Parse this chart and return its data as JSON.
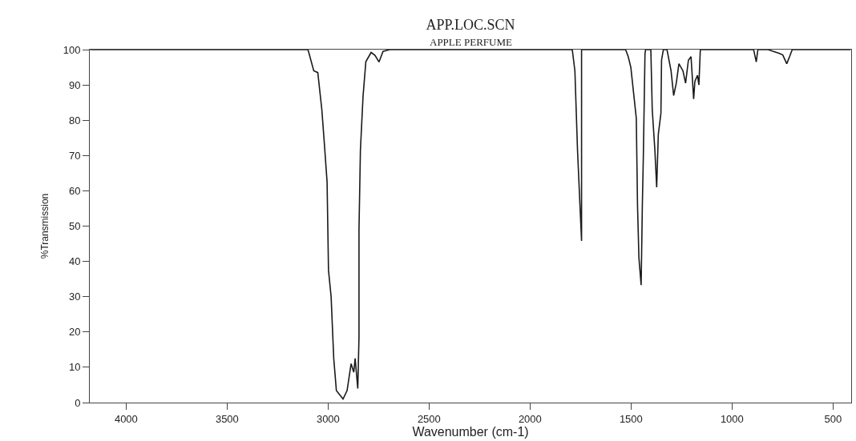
{
  "chart_data": {
    "type": "line",
    "title": "APP.LOC.SCN",
    "subtitle": "APPLE PERFUME",
    "xlabel": "Wavenumber (cm-1)",
    "ylabel": "%Transmission",
    "x": [
      4178,
      3100,
      3097,
      3071,
      3051,
      3031,
      3018,
      3005,
      2998,
      2985,
      2972,
      2959,
      2926,
      2906,
      2886,
      2873,
      2866,
      2853,
      2847,
      2847,
      2840,
      2827,
      2813,
      2787,
      2768,
      2748,
      2728,
      2695,
      1795,
      1791,
      1778,
      1765,
      1745,
      1745,
      1745,
      1527,
      1514,
      1501,
      1474,
      1468,
      1461,
      1450,
      1444,
      1439,
      1431,
      1428,
      1402,
      1395,
      1382,
      1373,
      1365,
      1352,
      1349,
      1340,
      1322,
      1302,
      1289,
      1276,
      1263,
      1243,
      1230,
      1216,
      1203,
      1190,
      1184,
      1171,
      1164,
      1157,
      893,
      880,
      872,
      821,
      795,
      768,
      749,
      729,
      715,
      702,
      413
    ],
    "series": [
      {
        "color": "#1a1a1a",
        "values": [
          100,
          100,
          99.5,
          94,
          93.5,
          83,
          73,
          62.5,
          37.5,
          30,
          12.5,
          3.4,
          1,
          3.4,
          11,
          8.6,
          12.5,
          4,
          18.5,
          49,
          71.5,
          86.7,
          96.6,
          99.2,
          98.4,
          96.5,
          99.5,
          100,
          100,
          100,
          94,
          71.5,
          45.8,
          86.7,
          100,
          100,
          98,
          95,
          80.6,
          56,
          41,
          33.3,
          56,
          70,
          98.8,
          100,
          100,
          83,
          71.5,
          61,
          76,
          82,
          97,
          100,
          100,
          94,
          87,
          90.5,
          96,
          94,
          90.5,
          97,
          98,
          86,
          91,
          92.7,
          90,
          100,
          100,
          96.5,
          100,
          100,
          99.5,
          99,
          98.5,
          96,
          98,
          100,
          100
        ]
      }
    ],
    "xlim": [
      4180,
      410
    ],
    "ylim": [
      0,
      100
    ],
    "xticks": [
      4000,
      3500,
      3000,
      2500,
      2000,
      1500,
      1000,
      500
    ],
    "yticks": [
      0,
      10,
      20,
      30,
      40,
      50,
      60,
      70,
      80,
      90,
      100
    ],
    "marker": "none",
    "line_style": "solid"
  }
}
